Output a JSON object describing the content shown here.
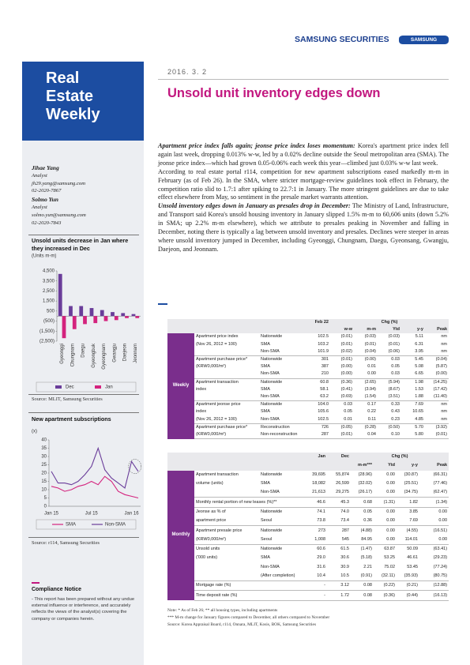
{
  "header": {
    "brand": "SAMSUNG SECURITIES",
    "logo": "SAMSUNG",
    "date": "2016. 3. 2",
    "title": "Unsold unit inventory edges down"
  },
  "sidebar": {
    "series_title": [
      "Real",
      "Estate",
      "Weekly"
    ],
    "analysts": [
      {
        "name": "Jihae Yang",
        "role": "Analyst",
        "email": "jh29.yang@samsung.com",
        "phone": "02-2020-7867"
      },
      {
        "name": "Solmo Yun",
        "role": "Analyst",
        "email": "solmo.yun@samsung.com",
        "phone": "02-2020-7843"
      }
    ],
    "compliance": {
      "title": "Compliance Notice",
      "text": "- This report has been prepared without any undue external influence or interference, and accurately reflects the views of the analyst(s) covering the company or companies herein."
    }
  },
  "chart_data": [
    {
      "type": "bar",
      "title": "Unsold units decrease in Jan where they increased in Dec",
      "ylabel": "(Units m-m)",
      "categories": [
        "Gyeonggi",
        "Chungnam",
        "Daegu",
        "Gyeongbuk",
        "Gyeongnam",
        "Gwangju",
        "Daejeon",
        "Jeonnam"
      ],
      "series": [
        {
          "name": "Dec",
          "color": "#6a3d9a",
          "values": [
            4200,
            1000,
            1000,
            800,
            600,
            400,
            300,
            200
          ]
        },
        {
          "name": "Jan",
          "color": "#d4237e",
          "values": [
            -2200,
            -1300,
            -800,
            -700,
            -500,
            -400,
            -200,
            -200
          ]
        }
      ],
      "ylim": [
        -2500,
        4500
      ],
      "yticks": [
        {
          "value": 4500,
          "label": "4,500"
        },
        {
          "value": 3500,
          "label": "3,500"
        },
        {
          "value": 2500,
          "label": "2,500"
        },
        {
          "value": 1500,
          "label": "1,500"
        },
        500,
        {
          "value": -500,
          "label": "(500)"
        },
        {
          "value": -1500,
          "label": "(1,500)"
        },
        {
          "value": -2500,
          "label": "(2,500)"
        }
      ],
      "legend": "bottom",
      "source": "Source: MLIT, Samsung Securities"
    },
    {
      "type": "line",
      "title": "New apartment subscriptions",
      "ylabel": "(x)",
      "categories": [
        "Jan 15",
        null,
        null,
        null,
        null,
        null,
        "Jul 15",
        null,
        null,
        null,
        null,
        null,
        "Jan 16",
        null
      ],
      "series": [
        {
          "name": "SMA",
          "color": "#d4237e",
          "values": [
            12,
            11,
            9,
            10,
            12,
            13,
            15,
            13,
            18,
            15,
            9,
            7,
            6,
            5
          ]
        },
        {
          "name": "Non-SMA",
          "color": "#6a3d9a",
          "values": [
            21,
            14,
            14,
            13,
            15,
            19,
            24,
            35,
            22,
            17,
            14,
            11,
            27,
            21
          ]
        }
      ],
      "ylim": [
        0,
        40
      ],
      "yticks": [
        0,
        5,
        10,
        15,
        20,
        25,
        30,
        35,
        40
      ],
      "legend": "bottom",
      "source": "Source: r114, Samsung Securities"
    }
  ],
  "article": {
    "paragraphs": [
      {
        "lead": "Apartment price index falls again; jeonse price index loses momentum:",
        "text": "Korea's apartment price index fell again last week, dropping 0.013% w-w, led by a 0.02% decline outside the Seoul metropolitan area (SMA). The jeonse price index—which had grown 0.05-0.06% each week this year—climbed just 0.03% w-w last week."
      },
      {
        "text": "According to real estate portal r114, competition for new apartment subscriptions eased markedly m-m in February (as of Feb 26). In the SMA, where stricter mortgage-review guidelines took effect in February, the competition ratio slid to 1.7:1 after spiking to 22.7:1 in January. The more stringent guidelines are due to take effect elsewhere from May, so sentiment in the presale market warrants attention."
      },
      {
        "lead": "Unsold inventory edges down in January as presales drop in December:",
        "text": "The Ministry of Land, Infrastructure, and Transport said Korea's unsold housing inventory in January slipped 1.5% m-m to 60,606 units (down 5.2% in SMA; up 2.2% m-m elsewhere), which we attribute to presales peaking in November and falling in December, noting there is typically a lag between unsold inventory and presales. Declines were steeper in areas where unsold inventory jumped in December, including Gyeonggi, Chungnam, Daegu, Gyeonsang, Gwangju, Daejeon, and Jeonnam."
      }
    ]
  },
  "weekly": {
    "section": "Weekly",
    "levels": [
      "Feb 22"
    ],
    "change_label": "Chg (%)",
    "changes": [
      "w-w",
      "m-m",
      "Ytd",
      "y-y",
      "Peak"
    ],
    "groups": [
      {
        "label": [
          "Apartment price index",
          "(Nov 26, 2012 = 100)"
        ],
        "rows": [
          {
            "name": "Nationwide",
            "values": [
              "102.5",
              "(0.01)",
              "(0.03)",
              "(0.03)",
              "5.11",
              "nm"
            ]
          },
          {
            "name": "SMA",
            "values": [
              "103.2",
              "(0.01)",
              "(0.01)",
              "(0.01)",
              "6.31",
              "nm"
            ]
          },
          {
            "name": "Non-SMA",
            "values": [
              "101.9",
              "(0.02)",
              "(0.04)",
              "(0.06)",
              "3.95",
              "nm"
            ]
          }
        ]
      },
      {
        "label": [
          "Apartment purchase price*",
          "(KRW0,000/m²)"
        ],
        "rows": [
          {
            "name": "Nationwide",
            "values": [
              "301",
              "(0.01)",
              "(0.00)",
              "0.03",
              "5.45",
              "(0.04)"
            ]
          },
          {
            "name": "SMA",
            "values": [
              "387",
              "(0.00)",
              "0.01",
              "0.05",
              "5.08",
              "(5.87)"
            ]
          },
          {
            "name": "Non-SMA",
            "values": [
              "210",
              "(0.00)",
              "0.00",
              "0.03",
              "6.65",
              "(0.00)"
            ]
          }
        ]
      },
      {
        "label": [
          "Apartment transaction",
          "index"
        ],
        "rows": [
          {
            "name": "Nationwide",
            "values": [
              "60.8",
              "(0.36)",
              "(2.65)",
              "(5.94)",
              "1.98",
              "(14.25)"
            ]
          },
          {
            "name": "SMA",
            "values": [
              "58.1",
              "(0.41)",
              "(3.94)",
              "(8.67)",
              "1.53",
              "(17.42)"
            ]
          },
          {
            "name": "Non-SMA",
            "values": [
              "63.2",
              "(0.69)",
              "(1.54)",
              "(3.51)",
              "1.88",
              "(11.40)"
            ]
          }
        ]
      },
      {
        "label": [
          "Apartment jeonse price",
          "index",
          "(Nov 26, 2012 = 100)"
        ],
        "rows": [
          {
            "name": "Nationwide",
            "values": [
              "104.0",
              "0.03",
              "0.17",
              "0.33",
              "7.69",
              "nm"
            ]
          },
          {
            "name": "SMA",
            "values": [
              "105.6",
              "0.05",
              "0.22",
              "0.43",
              "10.65",
              "nm"
            ]
          },
          {
            "name": "Non-SMA",
            "values": [
              "102.5",
              "0.01",
              "0.11",
              "0.23",
              "4.85",
              "nm"
            ]
          }
        ]
      },
      {
        "label": [
          "Apartment purchase price*",
          "(KRW0,000/m²)"
        ],
        "rows": [
          {
            "name": "Reconstruction",
            "values": [
              "726",
              "(0.05)",
              "(0.28)",
              "(0.50)",
              "5.70",
              "(3.92)"
            ]
          },
          {
            "name": "Non-reconstruction",
            "values": [
              "287",
              "(0.01)",
              "0.04",
              "0.10",
              "5.80",
              "(0.01)"
            ]
          }
        ]
      }
    ]
  },
  "monthly": {
    "section": "Monthly",
    "levels": [
      "Jan",
      "Dec"
    ],
    "change_label": "Chg (%)",
    "changes": [
      "m-m***",
      "Ytd",
      "y-y",
      "Peak"
    ],
    "groups": [
      {
        "label": [
          "Apartment transaction",
          "volume (units)"
        ],
        "rows": [
          {
            "name": "Nationwide",
            "values": [
              "39,695",
              "55,874",
              "(28.96)",
              "0.00",
              "(30.87)",
              "(66.31)"
            ]
          },
          {
            "name": "SMA",
            "values": [
              "18,082",
              "26,599",
              "(32.02)",
              "0.00",
              "(25.51)",
              "(77.46)"
            ]
          },
          {
            "name": "Non-SMA",
            "values": [
              "21,613",
              "29,275",
              "(26.17)",
              "0.00",
              "(34.75)",
              "(62.47)"
            ]
          }
        ]
      },
      {
        "label": [
          "Monthly rental portion of new leases (%)**"
        ],
        "rows": [
          {
            "values": [
              "46.6",
              "45.3",
              "0.68",
              "(1.31)",
              "1.82",
              "(1.34)"
            ]
          }
        ]
      },
      {
        "label": [
          "Jeonse as % of",
          "apartment price"
        ],
        "rows": [
          {
            "name": "Nationwide",
            "values": [
              "74.1",
              "74.0",
              "0.05",
              "0.00",
              "3.85",
              "0.00"
            ]
          },
          {
            "name": "Seoul",
            "values": [
              "73.8",
              "73.4",
              "0.36",
              "0.00",
              "7.69",
              "0.00"
            ]
          }
        ]
      },
      {
        "label": [
          "Apartment presale price",
          "(KRW0,000/m²)"
        ],
        "rows": [
          {
            "name": "Nationwide",
            "values": [
              "273",
              "287",
              "(4.88)",
              "0.00",
              "(4.55)",
              "(16.51)"
            ]
          },
          {
            "name": "Seoul",
            "values": [
              "1,008",
              "545",
              "84.95",
              "0.00",
              "114.01",
              "0.00"
            ]
          }
        ]
      },
      {
        "label": [
          "Unsold units",
          "('000 units)"
        ],
        "rows": [
          {
            "name": "Nationwide",
            "values": [
              "60.6",
              "61.5",
              "(1.47)",
              "63.87",
              "50.09",
              "(63.41)"
            ]
          },
          {
            "name": "SMA",
            "values": [
              "29.0",
              "30.6",
              "(5.18)",
              "53.25",
              "46.61",
              "(29.23)"
            ]
          },
          {
            "name": "Non-SMA",
            "values": [
              "31.6",
              "30.9",
              "2.21",
              "75.02",
              "53.45",
              "(77.24)"
            ]
          },
          {
            "name": "(After completion)",
            "values": [
              "10.4",
              "10.5",
              "(0.91)",
              "(32.11)",
              "(35.93)",
              "(80.75)"
            ]
          }
        ]
      },
      {
        "label": [
          "Mortgage rate (%)"
        ],
        "rows": [
          {
            "values": [
              "-",
              "3.12",
              "0.08",
              "(0.22)",
              "(0.21)",
              "(12.88)"
            ]
          }
        ]
      },
      {
        "label": [
          "Time deposit rate (%)"
        ],
        "rows": [
          {
            "values": [
              "-",
              "1.72",
              "0.08",
              "(0.36)",
              "(0.44)",
              "(16.13)"
            ]
          }
        ]
      }
    ]
  },
  "notes": [
    "Note: * As of Feb 26; ** all housing types, including apartments",
    "*** M-m change for January figures compared to December, all others compared to November",
    "Source: Korea Appraisal Board, r114, Onnara, MLIT, Kosis, BOK, Samsung Securities"
  ]
}
